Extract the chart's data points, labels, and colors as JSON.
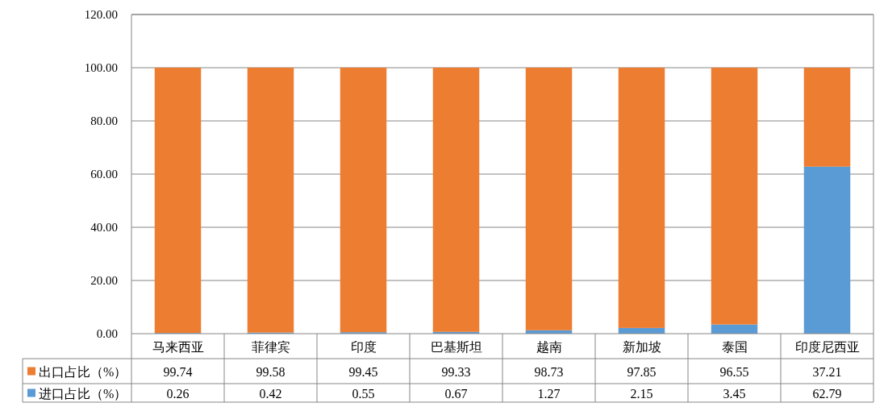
{
  "chart_data": {
    "type": "bar",
    "stacked": true,
    "categories": [
      "马来西亚",
      "菲律宾",
      "印度",
      "巴基斯坦",
      "越南",
      "新加坡",
      "泰国",
      "印度尼西亚"
    ],
    "series": [
      {
        "name": "进口占比（%）",
        "color": "#5b9bd5",
        "values": [
          0.26,
          0.42,
          0.55,
          0.67,
          1.27,
          2.15,
          3.45,
          62.79
        ]
      },
      {
        "name": "出口占比（%）",
        "color": "#ed7d31",
        "values": [
          99.74,
          99.58,
          99.45,
          99.33,
          98.73,
          97.85,
          96.55,
          37.21
        ]
      }
    ],
    "ylim": [
      0,
      120
    ],
    "yticks": [
      {
        "value": 0,
        "label": "0.00"
      },
      {
        "value": 20,
        "label": "20.00"
      },
      {
        "value": 40,
        "label": "40.00"
      },
      {
        "value": 60,
        "label": "60.00"
      },
      {
        "value": 80,
        "label": "80.00"
      },
      {
        "value": 100,
        "label": "100.00"
      },
      {
        "value": 120,
        "label": "120.00"
      }
    ],
    "grid": "y",
    "legend": "bottom",
    "data_labels": true
  }
}
